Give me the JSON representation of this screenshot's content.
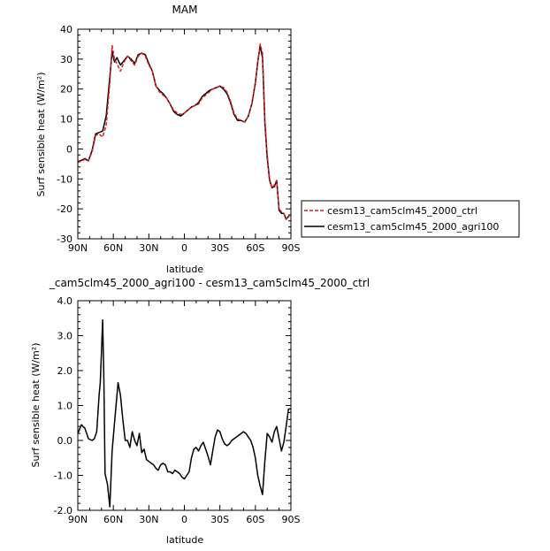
{
  "chart_data": [
    {
      "type": "line",
      "title": "MAM",
      "xlabel": "latitude",
      "ylabel": "Surf sensible heat (W/m²)",
      "xlim": [
        90,
        -90
      ],
      "ylim": [
        -30,
        40
      ],
      "xticks": [
        90,
        60,
        30,
        0,
        -30,
        -60,
        -90
      ],
      "xtick_labels": [
        "90N",
        "60N",
        "30N",
        "0",
        "30S",
        "60S",
        "90S"
      ],
      "yticks": [
        -30,
        -20,
        -10,
        0,
        10,
        20,
        30,
        40
      ],
      "ytick_labels": [
        "-30",
        "-20",
        "-10",
        "0",
        "10",
        "20",
        "30",
        "40"
      ],
      "legend": "right",
      "series": [
        {
          "name": "cesm13_cam5clm45_2000_ctrl",
          "color": "#e31a1c",
          "dash": "dashed",
          "x": [
            90,
            87,
            84,
            81,
            78,
            75,
            72,
            69,
            66,
            63,
            61,
            59,
            57,
            54,
            51,
            48,
            45,
            42,
            39,
            36,
            33,
            30,
            27,
            24,
            21,
            18,
            15,
            12,
            9,
            6,
            3,
            0,
            -3,
            -6,
            -9,
            -12,
            -15,
            -18,
            -21,
            -24,
            -27,
            -30,
            -33,
            -36,
            -39,
            -42,
            -45,
            -48,
            -51,
            -54,
            -57,
            -60,
            -62,
            -64,
            -66,
            -68,
            -70,
            -72,
            -74,
            -76,
            -78,
            -80,
            -82,
            -84,
            -86,
            -88,
            -90
          ],
          "y": [
            -4.5,
            -4,
            -3.5,
            -4,
            -1,
            4.5,
            5,
            4,
            8,
            22,
            34.5,
            30,
            28.5,
            26,
            29,
            31,
            29.5,
            28,
            31,
            32,
            31,
            28,
            26,
            21,
            19,
            18,
            17,
            15,
            13,
            12,
            11.5,
            12,
            13,
            14,
            14.5,
            15,
            17,
            18,
            19,
            20,
            20.5,
            21,
            20.5,
            19,
            16,
            12,
            10,
            9.5,
            9,
            11,
            15,
            22,
            29,
            35,
            32,
            10,
            -2,
            -10,
            -13,
            -12,
            -10.5,
            -20,
            -21,
            -21.5,
            -23.5,
            -22.5,
            -22
          ]
        },
        {
          "name": "cesm13_cam5clm45_2000_agri100",
          "color": "#000000",
          "dash": "solid",
          "x": [
            90,
            87,
            84,
            81,
            78,
            75,
            72,
            69,
            66,
            63,
            61,
            59,
            57,
            54,
            51,
            48,
            45,
            42,
            39,
            36,
            33,
            30,
            27,
            24,
            21,
            18,
            15,
            12,
            9,
            6,
            3,
            0,
            -3,
            -6,
            -9,
            -12,
            -15,
            -18,
            -21,
            -24,
            -27,
            -30,
            -33,
            -36,
            -39,
            -42,
            -45,
            -48,
            -51,
            -54,
            -57,
            -60,
            -62,
            -64,
            -66,
            -68,
            -70,
            -72,
            -74,
            -76,
            -78,
            -80,
            -82,
            -84,
            -86,
            -88,
            -90
          ],
          "y": [
            -4.3,
            -3.8,
            -3.2,
            -4,
            -0.5,
            5,
            5.5,
            6,
            11,
            24,
            32.5,
            29,
            30.5,
            28,
            29.5,
            31,
            30,
            28.5,
            31.5,
            32,
            31.5,
            28.5,
            26,
            21,
            19.5,
            18.5,
            17,
            15,
            12.5,
            11.5,
            11,
            12,
            13,
            14,
            14.5,
            15.5,
            17.5,
            18.5,
            19.5,
            20,
            20.5,
            21,
            20,
            18.5,
            15.5,
            11.5,
            9.5,
            9.5,
            9,
            11,
            15,
            22,
            29,
            34.5,
            30.5,
            9,
            -3,
            -10.5,
            -13,
            -12.5,
            -10.5,
            -20.5,
            -21.5,
            -21.5,
            -23.5,
            -22.5,
            -22
          ]
        }
      ]
    },
    {
      "type": "line",
      "title": "_cam5clm45_2000_agri100 - cesm13_cam5clm45_2000_ctrl",
      "xlabel": "latitude",
      "ylabel": "Surf sensible heat (W/m²)",
      "xlim": [
        90,
        -90
      ],
      "ylim": [
        -2.0,
        4.0
      ],
      "xticks": [
        90,
        60,
        30,
        0,
        -30,
        -60,
        -90
      ],
      "xtick_labels": [
        "90N",
        "60N",
        "30N",
        "0",
        "30S",
        "60S",
        "90S"
      ],
      "yticks": [
        -2.0,
        -1.0,
        0.0,
        1.0,
        2.0,
        3.0,
        4.0
      ],
      "ytick_labels": [
        "-2.0",
        "-1.0",
        "0.0",
        "1.0",
        "2.0",
        "3.0",
        "4.0"
      ],
      "series": [
        {
          "color": "#000000",
          "dash": "solid",
          "x": [
            90,
            87,
            84,
            81,
            78,
            76,
            74,
            72,
            71,
            69,
            68,
            67,
            65,
            63,
            61,
            59,
            56,
            54,
            52,
            50,
            48,
            46,
            45,
            44,
            42,
            40,
            38,
            36,
            34,
            32,
            30,
            28,
            26,
            24,
            22,
            20,
            18,
            16,
            14,
            12,
            10,
            8,
            6,
            4,
            2,
            0,
            -2,
            -4,
            -6,
            -8,
            -10,
            -12,
            -14,
            -16,
            -18,
            -20,
            -22,
            -24,
            -26,
            -28,
            -30,
            -32,
            -34,
            -36,
            -38,
            -40,
            -42,
            -44,
            -46,
            -48,
            -50,
            -52,
            -54,
            -56,
            -58,
            -60,
            -62,
            -64,
            -66,
            -68,
            -70,
            -72,
            -74,
            -76,
            -78,
            -80,
            -82,
            -84,
            -86,
            -88,
            -90
          ],
          "y": [
            0.2,
            0.45,
            0.35,
            0.05,
            0.0,
            0.05,
            0.25,
            1.3,
            1.65,
            3.45,
            1.7,
            -0.95,
            -1.25,
            -1.9,
            -0.3,
            0.5,
            1.65,
            1.3,
            0.6,
            0.0,
            0.0,
            -0.2,
            0.05,
            0.25,
            0.0,
            -0.15,
            0.2,
            -0.35,
            -0.25,
            -0.55,
            -0.6,
            -0.65,
            -0.7,
            -0.8,
            -0.85,
            -0.7,
            -0.65,
            -0.7,
            -0.9,
            -0.9,
            -0.95,
            -0.85,
            -0.9,
            -0.95,
            -1.05,
            -1.1,
            -1.0,
            -0.9,
            -0.5,
            -0.25,
            -0.2,
            -0.3,
            -0.15,
            -0.05,
            -0.25,
            -0.45,
            -0.7,
            -0.3,
            0.1,
            0.3,
            0.25,
            0.05,
            -0.1,
            -0.15,
            -0.1,
            0.0,
            0.05,
            0.1,
            0.15,
            0.2,
            0.25,
            0.2,
            0.1,
            0.0,
            -0.2,
            -0.5,
            -1.0,
            -1.3,
            -1.55,
            -0.6,
            0.2,
            0.1,
            -0.05,
            0.25,
            0.4,
            0.05,
            -0.3,
            -0.05,
            0.4,
            0.9,
            0.9
          ]
        }
      ]
    }
  ]
}
